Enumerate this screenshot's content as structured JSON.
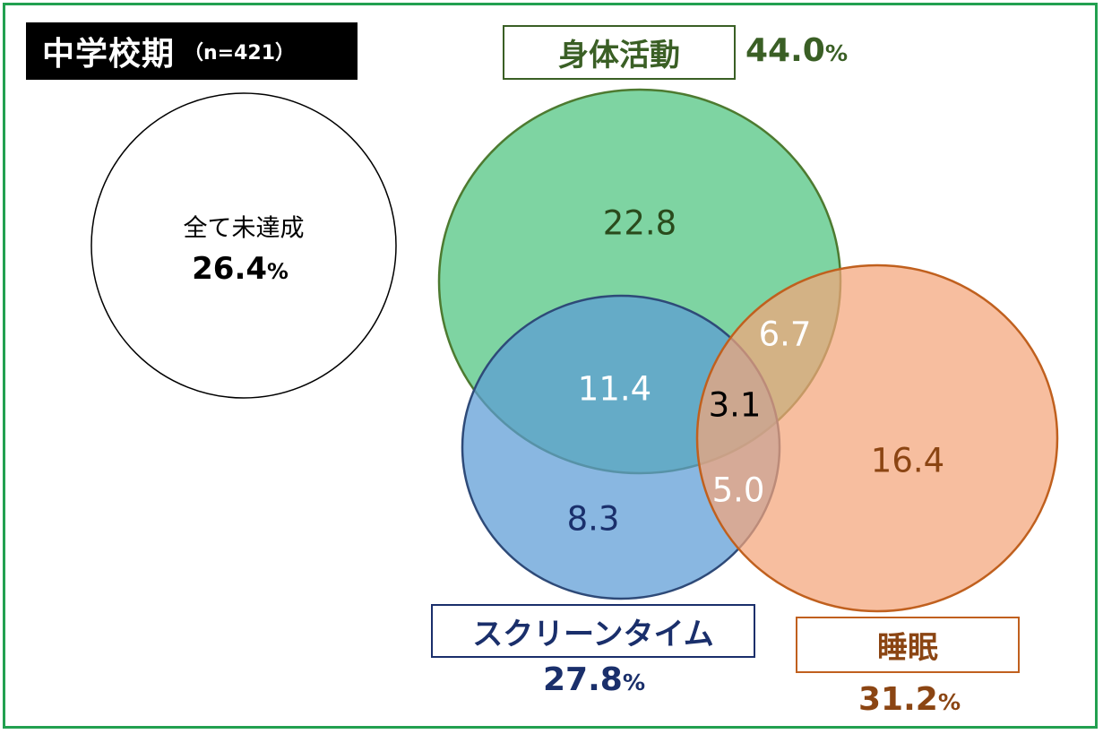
{
  "title": {
    "main": "中学校期",
    "sample": "（n=421）"
  },
  "sets": {
    "physical": {
      "label": "身体活動",
      "total": "44.0",
      "unit": "%",
      "color": "#3a5f25",
      "fill": "#4cc47e",
      "stroke": "#4d7a30"
    },
    "screen": {
      "label": "スクリーンタイム",
      "total": "27.8",
      "unit": "%",
      "color": "#1a2f6b",
      "fill": "#5b9bd5",
      "stroke": "#2e4a78"
    },
    "sleep": {
      "label": "睡眠",
      "total": "31.2",
      "unit": "%",
      "color": "#8b4513",
      "fill": "#f4a57a",
      "stroke": "#c0601e"
    }
  },
  "none": {
    "label": "全て未達成",
    "value": "26.4",
    "unit": "%"
  },
  "regions": {
    "physical_only": "22.8",
    "physical_screen": "11.4",
    "physical_sleep": "6.7",
    "all_three": "3.1",
    "screen_sleep": "5.0",
    "screen_only": "8.3",
    "sleep_only": "16.4"
  }
}
